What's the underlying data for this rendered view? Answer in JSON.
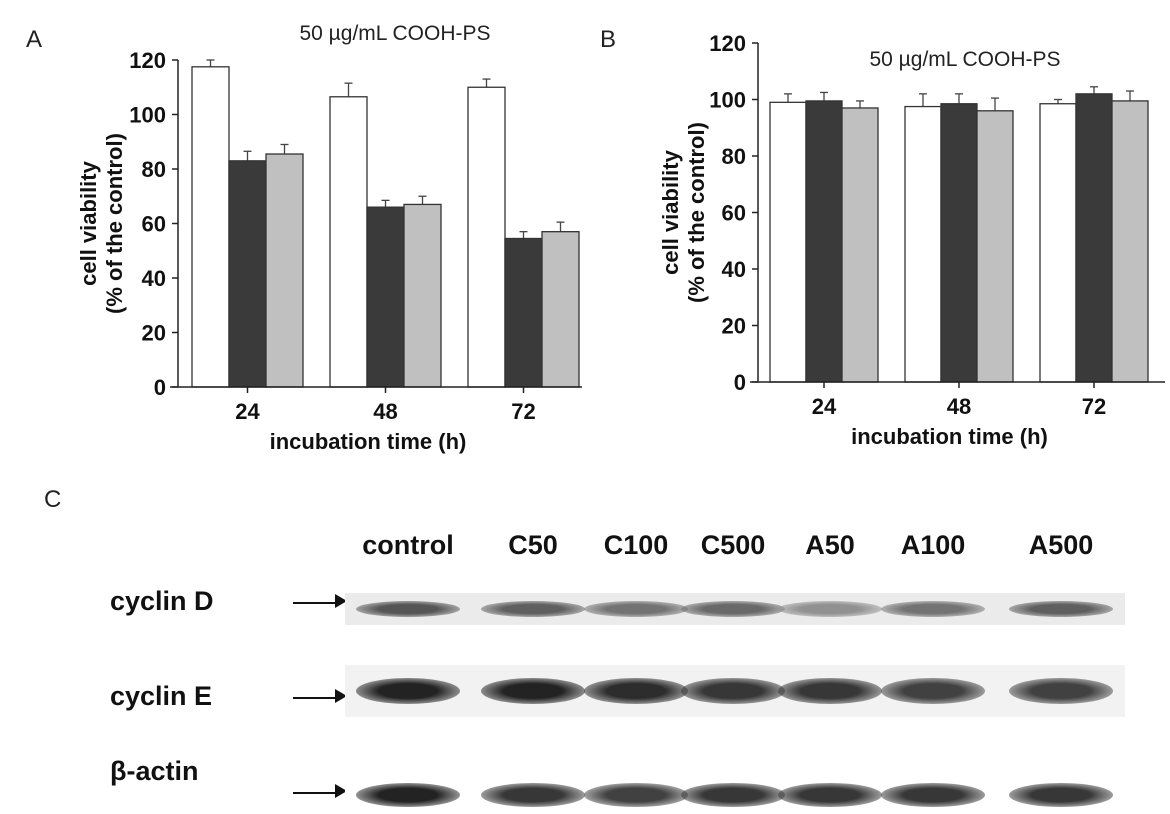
{
  "panels": {
    "a": "A",
    "b": "B",
    "c": "C"
  },
  "chart_data": [
    {
      "type": "bar",
      "panel": "A",
      "title": "50 µg/mL COOH-PS",
      "xlabel": "incubation time (h)",
      "ylabel_line1": "cell viability",
      "ylabel_line2": "(% of the control)",
      "categories": [
        "24",
        "48",
        "72"
      ],
      "yticks": [
        0,
        20,
        40,
        60,
        80,
        100,
        120
      ],
      "ylim": [
        0,
        120
      ],
      "series": [
        {
          "name": "series 1 (white)",
          "color": "#ffffff",
          "values": [
            117.5,
            106.5,
            110
          ],
          "errors": [
            2.5,
            5,
            3
          ]
        },
        {
          "name": "series 2 (dark)",
          "color": "#3a3a3a",
          "values": [
            83,
            66,
            54.5
          ],
          "errors": [
            3.5,
            2.5,
            2.5
          ]
        },
        {
          "name": "series 3 (grey)",
          "color": "#c0c0c0",
          "values": [
            85.5,
            67,
            57
          ],
          "errors": [
            3.5,
            3,
            3.5
          ]
        }
      ]
    },
    {
      "type": "bar",
      "panel": "B",
      "title": "50 µg/mL COOH-PS",
      "xlabel": "incubation time (h)",
      "ylabel_line1": "cell viability",
      "ylabel_line2": "(% of the control)",
      "categories": [
        "24",
        "48",
        "72"
      ],
      "yticks": [
        0,
        20,
        40,
        60,
        80,
        100,
        120
      ],
      "ylim": [
        0,
        120
      ],
      "series": [
        {
          "name": "series 1 (white)",
          "color": "#ffffff",
          "values": [
            99,
            97.5,
            98.5
          ],
          "errors": [
            3,
            4.5,
            1.5
          ]
        },
        {
          "name": "series 2 (dark)",
          "color": "#3a3a3a",
          "values": [
            99.5,
            98.5,
            102
          ],
          "errors": [
            3,
            3.5,
            2.5
          ]
        },
        {
          "name": "series 3 (grey)",
          "color": "#c0c0c0",
          "values": [
            97,
            96,
            99.5
          ],
          "errors": [
            2.5,
            4.5,
            3.5
          ]
        }
      ]
    }
  ],
  "blot": {
    "lanes": [
      "control",
      "C50",
      "C100",
      "C500",
      "A50",
      "A100",
      "A500"
    ],
    "rows": [
      {
        "label": "cyclin D",
        "intensity": [
          0.75,
          0.7,
          0.6,
          0.65,
          0.45,
          0.6,
          0.7
        ]
      },
      {
        "label": "cyclin E",
        "intensity": [
          1.0,
          1.0,
          0.95,
          0.9,
          0.9,
          0.85,
          0.85
        ]
      },
      {
        "label": "β-actin",
        "intensity": [
          1.0,
          0.9,
          0.85,
          0.9,
          0.9,
          0.9,
          0.9
        ]
      }
    ]
  }
}
